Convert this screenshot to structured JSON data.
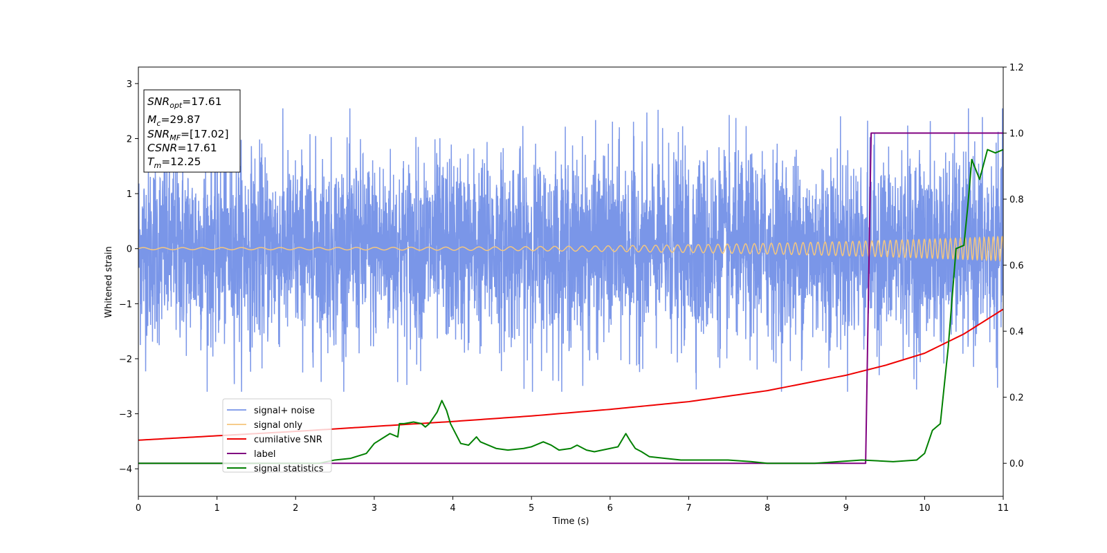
{
  "chart_data": {
    "type": "line",
    "xlabel": "Time (s)",
    "ylabel": "Whitened strain",
    "xlim": [
      0,
      11
    ],
    "ylim": [
      -4.5,
      3.3
    ],
    "y2lim": [
      -0.1,
      1.2
    ],
    "x_ticks": [
      0,
      1,
      2,
      3,
      4,
      5,
      6,
      7,
      8,
      9,
      10,
      11
    ],
    "y_ticks": [
      3,
      2,
      1,
      0,
      -1,
      -2,
      -3,
      -4
    ],
    "y2_ticks": [
      1.2,
      1.0,
      0.8,
      0.6,
      0.4,
      0.2,
      0.0
    ],
    "x_tick_labels": [
      "0",
      "1",
      "2",
      "3",
      "4",
      "5",
      "6",
      "7",
      "8",
      "9",
      "10",
      "11"
    ],
    "y_tick_labels": [
      "3",
      "2",
      "1",
      "0",
      "−1",
      "−2",
      "−3",
      "−4"
    ],
    "y2_tick_labels": [
      "1.2",
      "1.0",
      "0.8",
      "0.6",
      "0.4",
      "0.2",
      "0.0"
    ],
    "grid": false,
    "legend_position": "lower-left",
    "annotation": {
      "snr_opt": {
        "label": "SNR",
        "sub": "opt",
        "value": "=17.61"
      },
      "mc": {
        "label": "M",
        "sub": "c",
        "value": "=29.87"
      },
      "snr_mf": {
        "label": "SNR",
        "sub": "MF",
        "value": "=[17.02]"
      },
      "csnr": {
        "label": "CSNR",
        "value": "=17.61"
      },
      "tm": {
        "label": "T",
        "sub": "m",
        "value": "=12.25"
      }
    },
    "series": [
      {
        "name": "signal+ noise",
        "color": "#7a96e8",
        "axis": "left",
        "description_values": "noise, approx. standard deviation 0.9",
        "envelope": {
          "min": -2.6,
          "max": 2.55
        }
      },
      {
        "name": "signal only",
        "color": "#f5c77e",
        "axis": "left",
        "chirp": {
          "f0_hz": 4,
          "f1_hz": 18,
          "amp_start": 0.02,
          "amp_end": 0.22
        }
      },
      {
        "name": "cumilative SNR",
        "color": "#ee0000",
        "axis": "left",
        "x": [
          0,
          1,
          2,
          3,
          4,
          5,
          6,
          7,
          8,
          9,
          9.5,
          10,
          10.5,
          11
        ],
        "y": [
          -3.48,
          -3.4,
          -3.32,
          -3.23,
          -3.14,
          -3.04,
          -2.92,
          -2.78,
          -2.58,
          -2.3,
          -2.12,
          -1.9,
          -1.55,
          -1.1
        ]
      },
      {
        "name": "label",
        "color": "#800080",
        "axis": "right",
        "x": [
          0,
          9.25,
          9.32,
          11
        ],
        "y": [
          0,
          0,
          1,
          1
        ]
      },
      {
        "name": "signal statistics",
        "color": "#008000",
        "axis": "right",
        "x": [
          0,
          2.3,
          2.5,
          2.7,
          2.9,
          3.0,
          3.1,
          3.2,
          3.3,
          3.32,
          3.38,
          3.5,
          3.6,
          3.65,
          3.7,
          3.8,
          3.86,
          3.92,
          3.97,
          4.1,
          4.2,
          4.3,
          4.35,
          4.45,
          4.55,
          4.7,
          4.9,
          5.0,
          5.15,
          5.25,
          5.35,
          5.5,
          5.58,
          5.7,
          5.8,
          5.9,
          6.0,
          6.1,
          6.2,
          6.25,
          6.32,
          6.4,
          6.5,
          6.7,
          6.9,
          7.2,
          7.5,
          7.8,
          8.0,
          8.3,
          8.6,
          8.9,
          9.2,
          9.6,
          9.9,
          10.0,
          10.1,
          10.2,
          10.3,
          10.4,
          10.5,
          10.55,
          10.6,
          10.7,
          10.8,
          10.9,
          11.0
        ],
        "y": [
          0.0,
          0.0,
          0.01,
          0.015,
          0.03,
          0.06,
          0.075,
          0.09,
          0.08,
          0.12,
          0.12,
          0.125,
          0.12,
          0.11,
          0.12,
          0.155,
          0.19,
          0.16,
          0.12,
          0.06,
          0.055,
          0.08,
          0.065,
          0.055,
          0.045,
          0.04,
          0.045,
          0.05,
          0.065,
          0.055,
          0.04,
          0.045,
          0.055,
          0.04,
          0.035,
          0.04,
          0.045,
          0.05,
          0.09,
          0.07,
          0.045,
          0.035,
          0.02,
          0.015,
          0.01,
          0.01,
          0.01,
          0.005,
          0.0,
          0.0,
          0.0,
          0.005,
          0.01,
          0.005,
          0.01,
          0.03,
          0.1,
          0.12,
          0.35,
          0.65,
          0.66,
          0.78,
          0.92,
          0.86,
          0.95,
          0.94,
          0.95
        ]
      }
    ]
  }
}
